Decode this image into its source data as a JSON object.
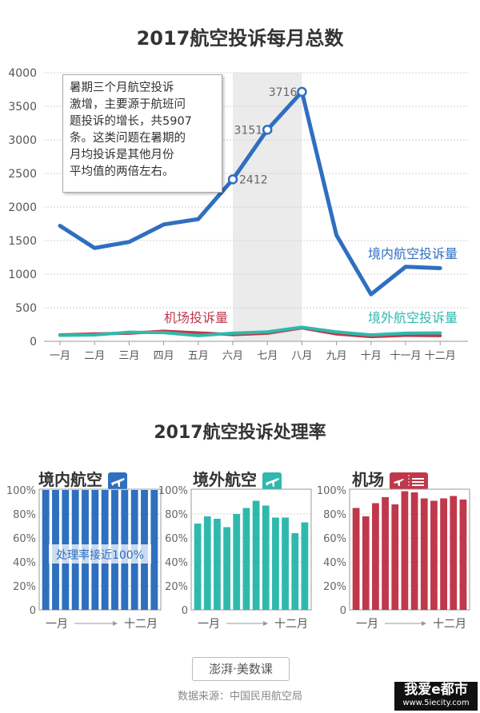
{
  "title_main": "2017航空投诉每月总数",
  "title_rate": "2017航空投诉处理率",
  "chart_data": [
    {
      "type": "line",
      "title": "2017航空投诉每月总数",
      "categories": [
        "一月",
        "二月",
        "三月",
        "四月",
        "五月",
        "六月",
        "七月",
        "八月",
        "九月",
        "十月",
        "十一月",
        "十二月"
      ],
      "ylim": [
        0,
        4000
      ],
      "yticks": [
        0,
        500,
        1000,
        1500,
        2000,
        2500,
        3000,
        3500,
        4000
      ],
      "series": [
        {
          "name": "境内航空投诉量",
          "color": "#2f6fbf",
          "values": [
            1720,
            1390,
            1480,
            1740,
            1820,
            2412,
            3151,
            3716,
            1580,
            700,
            1110,
            1090
          ]
        },
        {
          "name": "机场投诉量",
          "color": "#c0384b",
          "values": [
            95,
            110,
            120,
            150,
            125,
            100,
            120,
            200,
            110,
            70,
            90,
            85
          ]
        },
        {
          "name": "境外航空投诉量",
          "color": "#2fb9ad",
          "values": [
            90,
            95,
            135,
            130,
            85,
            120,
            140,
            210,
            140,
            95,
            120,
            125
          ]
        }
      ],
      "point_labels": [
        {
          "index": 5,
          "text": "2412"
        },
        {
          "index": 6,
          "text": "3151"
        },
        {
          "index": 7,
          "text": "3716"
        }
      ],
      "highlight_range": [
        "六月",
        "八月"
      ],
      "annotation": "暑期三个月航空投诉激增，主要源于航班问题投诉的增长，共5907条。这类问题在暑期的月均投诉是其他月份平均值的两倍左右。",
      "annotation_lines": [
        "暑期三个月航空投诉",
        "激增，主要源于航班问",
        "题投诉的增长，共5907",
        "条。这类问题在暑期的",
        "月均投诉是其他月份",
        "平均值的两倍左右。"
      ],
      "grid": true
    },
    {
      "type": "bar",
      "title": "境内航空",
      "color": "#2f6fbf",
      "values": [
        100,
        100,
        100,
        100,
        100,
        100,
        100,
        100,
        100,
        100,
        100,
        100
      ],
      "ylim": [
        0,
        100
      ],
      "yticks": [
        "0",
        "20%",
        "40%",
        "60%",
        "80%",
        "100%"
      ],
      "xlabel_start": "一月",
      "xlabel_end": "十二月",
      "annotation": "处理率接近100%"
    },
    {
      "type": "bar",
      "title": "境外航空",
      "color": "#2fb9ad",
      "values": [
        72,
        78,
        76,
        69,
        80,
        85,
        91,
        87,
        77,
        77,
        64,
        73
      ],
      "ylim": [
        0,
        100
      ],
      "yticks": [
        "0",
        "20%",
        "40%",
        "60%",
        "80%",
        "100%"
      ],
      "xlabel_start": "一月",
      "xlabel_end": "十二月"
    },
    {
      "type": "bar",
      "title": "机场",
      "color": "#c0384b",
      "values": [
        85,
        78,
        89,
        94,
        88,
        99,
        98,
        93,
        91,
        93,
        95,
        92
      ],
      "ylim": [
        0,
        100
      ],
      "yticks": [
        "0",
        "20%",
        "40%",
        "60%",
        "80%",
        "100%"
      ],
      "xlabel_start": "一月",
      "xlabel_end": "十二月"
    }
  ],
  "icons": {
    "domestic": "airplane-icon",
    "foreign": "airplane-icon",
    "airport": "ticket-icon"
  },
  "footer": {
    "logo": "澎湃·美数课",
    "source": "数据来源：中国民用航空局"
  },
  "watermark": {
    "main": "我爱e都市",
    "url": "www.5iecity.com"
  }
}
